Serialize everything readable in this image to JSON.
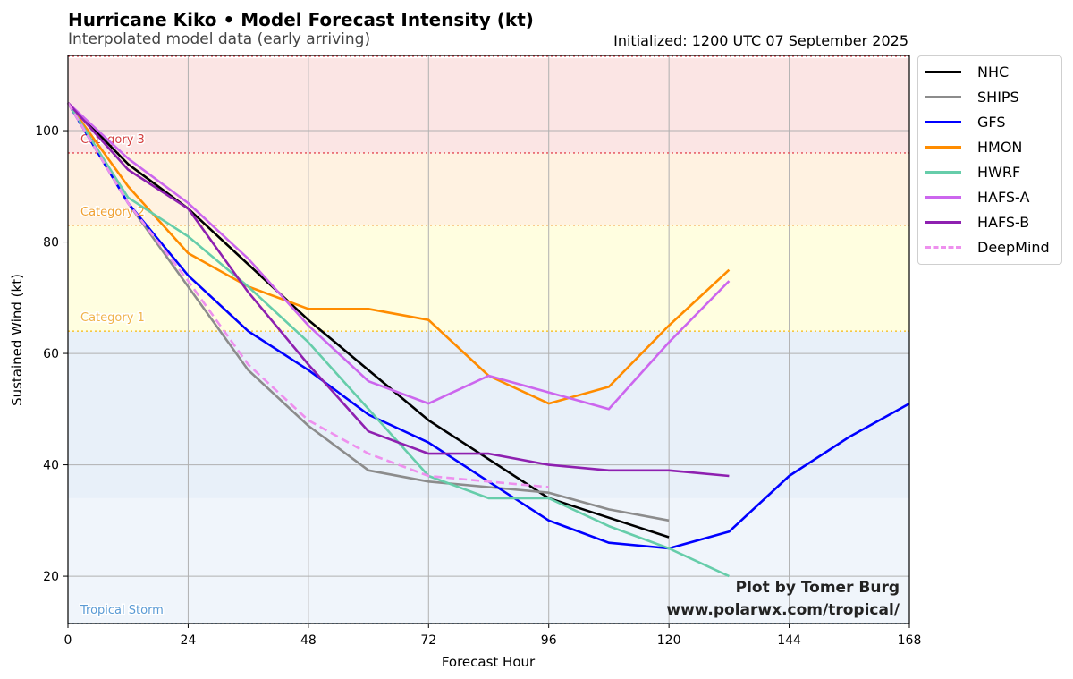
{
  "title": "Hurricane Kiko • Model Forecast Intensity (kt)",
  "subtitle": "Interpolated model data (early arriving)",
  "initialized": "Initialized: 1200 UTC 07 September 2025",
  "credit_line1": "Plot by Tomer Burg",
  "credit_line2": "www.polarwx.com/tropical/",
  "chart_data": {
    "type": "line",
    "xlabel": "Forecast Hour",
    "ylabel": "Sustained Wind (kt)",
    "xlim": [
      0,
      168
    ],
    "ylim": [
      11.5,
      113.5
    ],
    "x_ticks": [
      0,
      24,
      48,
      72,
      96,
      120,
      144,
      168
    ],
    "y_ticks": [
      20,
      40,
      60,
      80,
      100
    ],
    "grid": true,
    "legend_position": "right, outside plot",
    "bands": [
      {
        "label": "Tropical Storm",
        "from": 11.5,
        "to": 34,
        "fill": "#f0f5fb",
        "line": "#6aa9d8",
        "label_color": "#5b9bd5"
      },
      {
        "label": "",
        "from": 34,
        "to": 64,
        "fill": "#e8f0f9",
        "line": "",
        "label_color": ""
      },
      {
        "label": "Category 1",
        "from": 64,
        "to": 83,
        "fill": "#fffee0",
        "line": "#f5c845",
        "label_color": "#f0b34a"
      },
      {
        "label": "Category 2",
        "from": 83,
        "to": 96,
        "fill": "#fff2e1",
        "line": "#f5b060",
        "label_color": "#f0a030"
      },
      {
        "label": "Category 3",
        "from": 96,
        "to": 113,
        "fill": "#fbe5e4",
        "line": "#e8636b",
        "label_color": "#d43f3f"
      }
    ],
    "series": [
      {
        "name": "NHC",
        "color": "#000000",
        "dash": false,
        "x": [
          0,
          12,
          24,
          36,
          48,
          60,
          72,
          84,
          96,
          108,
          120
        ],
        "y": [
          105,
          94,
          86,
          76,
          66,
          57,
          48,
          41,
          34,
          30.5,
          27
        ]
      },
      {
        "name": "SHIPS",
        "color": "#8c8c8c",
        "dash": false,
        "x": [
          0,
          12,
          24,
          36,
          48,
          60,
          72,
          84,
          96,
          108,
          120
        ],
        "y": [
          105,
          87,
          72,
          57,
          47,
          39,
          37,
          36,
          35,
          32,
          30
        ]
      },
      {
        "name": "GFS",
        "color": "#0000ff",
        "dash": false,
        "x": [
          0,
          12,
          24,
          36,
          48,
          60,
          72,
          84,
          96,
          108,
          120,
          132,
          144,
          156,
          168
        ],
        "y": [
          105,
          87,
          74,
          64,
          57,
          49,
          44,
          37,
          30,
          26,
          25,
          28,
          38,
          45,
          51
        ]
      },
      {
        "name": "HMON",
        "color": "#ff8c00",
        "dash": false,
        "x": [
          0,
          12,
          24,
          36,
          48,
          60,
          72,
          84,
          96,
          108,
          120,
          132
        ],
        "y": [
          105,
          90,
          78,
          72,
          68,
          68,
          66,
          56,
          51,
          54,
          65,
          75
        ]
      },
      {
        "name": "HWRF",
        "color": "#66cdaa",
        "dash": false,
        "x": [
          0,
          12,
          24,
          36,
          48,
          60,
          72,
          84,
          96,
          108,
          120,
          132
        ],
        "y": [
          105,
          88,
          81,
          72,
          62,
          50,
          38,
          34,
          34,
          29,
          25,
          20
        ]
      },
      {
        "name": "HAFS-A",
        "color": "#cc66ee",
        "dash": false,
        "x": [
          0,
          12,
          24,
          36,
          48,
          60,
          72,
          84,
          96,
          108,
          120,
          132
        ],
        "y": [
          105,
          95,
          87,
          77,
          65,
          55,
          51,
          56,
          53,
          50,
          62,
          73
        ]
      },
      {
        "name": "HAFS-B",
        "color": "#8e20b0",
        "dash": false,
        "x": [
          0,
          12,
          24,
          36,
          48,
          60,
          72,
          84,
          96,
          108,
          120,
          132
        ],
        "y": [
          105,
          93,
          86,
          71,
          58,
          46,
          42,
          42,
          40,
          39,
          39,
          38
        ]
      },
      {
        "name": "DeepMind",
        "color": "#ee90ee",
        "dash": true,
        "x": [
          0,
          12,
          24,
          36,
          48,
          60,
          72,
          84,
          96
        ],
        "y": [
          105,
          87,
          73,
          58,
          48,
          42,
          38,
          37,
          36
        ]
      }
    ]
  }
}
